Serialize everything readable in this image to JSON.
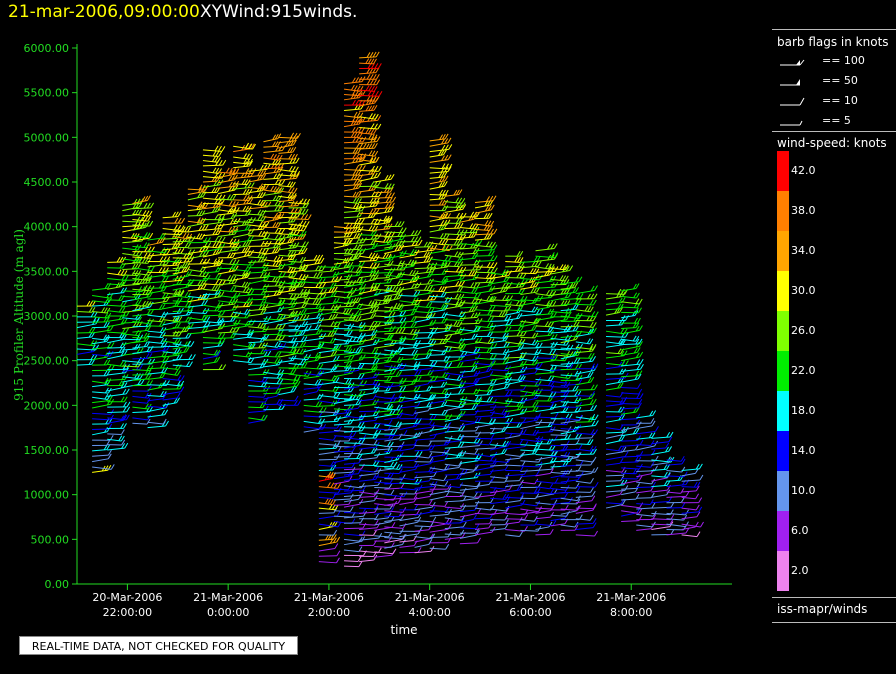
{
  "header": {
    "datetime": "21-mar-2006,09:00:00",
    "product": "XYWind:915winds."
  },
  "footer_note": "REAL-TIME DATA, NOT CHECKED FOR QUALITY",
  "legend": {
    "barb_title": "barb flags in knots",
    "barb_items": [
      {
        "label": "== 100",
        "knots": 100
      },
      {
        "label": "== 50",
        "knots": 50
      },
      {
        "label": "== 10",
        "knots": 10
      },
      {
        "label": "== 5",
        "knots": 5
      }
    ],
    "speed_title": "wind-speed: knots",
    "speed_scale": [
      {
        "label": "42.0",
        "color": "#ff0000"
      },
      {
        "label": "38.0",
        "color": "#ff7f00"
      },
      {
        "label": "34.0",
        "color": "#ffa500"
      },
      {
        "label": "30.0",
        "color": "#ffff00"
      },
      {
        "label": "26.0",
        "color": "#7fff00"
      },
      {
        "label": "22.0",
        "color": "#00ee00"
      },
      {
        "label": "18.0",
        "color": "#00ffff"
      },
      {
        "label": "14.0",
        "color": "#0000ff"
      },
      {
        "label": "10.0",
        "color": "#6495ed"
      },
      {
        "label": "6.0",
        "color": "#a020f0"
      },
      {
        "label": "2.0",
        "color": "#ee82ee"
      }
    ],
    "source": "iss-mapr/winds"
  },
  "colors": {
    "axis": "#22dd22",
    "text": "#ffffff",
    "background": "#000000",
    "title_date": "#ffff00"
  },
  "chart_data": {
    "type": "wind-barb time-height",
    "xlabel": "time",
    "ylabel": "915 Profiler Altitude (m agl)",
    "ylim": [
      0,
      6000
    ],
    "y_ticks": [
      "0.00",
      "500.00",
      "1000.00",
      "1500.00",
      "2000.00",
      "2500.00",
      "3000.00",
      "3500.00",
      "4000.00",
      "4500.00",
      "5000.00",
      "5500.00",
      "6000.00"
    ],
    "x_ticks": [
      {
        "date": "20-Mar-2006",
        "time": "22:00:00",
        "hours": 22
      },
      {
        "date": "21-Mar-2006",
        "time": "0:00:00",
        "hours": 24
      },
      {
        "date": "21-Mar-2006",
        "time": "2:00:00",
        "hours": 26
      },
      {
        "date": "21-Mar-2006",
        "time": "4:00:00",
        "hours": 28
      },
      {
        "date": "21-Mar-2006",
        "time": "6:00:00",
        "hours": 30
      },
      {
        "date": "21-Mar-2006",
        "time": "8:00:00",
        "hours": 32
      }
    ],
    "xlim_hours": [
      21,
      34
    ],
    "profiles": [
      {
        "hour": 21.0,
        "bottom": 2450,
        "top": 3150
      },
      {
        "hour": 21.3,
        "bottom": 1250,
        "top": 3300
      },
      {
        "hour": 21.6,
        "bottom": 1500,
        "top": 3600
      },
      {
        "hour": 21.9,
        "bottom": 2200,
        "top": 4250
      },
      {
        "hour": 22.1,
        "bottom": 1800,
        "top": 4300
      },
      {
        "hour": 22.4,
        "bottom": 1750,
        "top": 3900
      },
      {
        "hour": 22.7,
        "bottom": 2000,
        "top": 4150
      },
      {
        "hour": 22.9,
        "bottom": 2450,
        "top": 4000
      },
      {
        "hour": 23.2,
        "bottom": 2800,
        "top": 4450
      },
      {
        "hour": 23.5,
        "bottom": 2400,
        "top": 4900
      },
      {
        "hour": 23.8,
        "bottom": 2750,
        "top": 4650
      },
      {
        "hour": 24.1,
        "bottom": 2500,
        "top": 4950
      },
      {
        "hour": 24.4,
        "bottom": 1800,
        "top": 4650
      },
      {
        "hour": 24.7,
        "bottom": 1950,
        "top": 4950
      },
      {
        "hour": 25.0,
        "bottom": 2000,
        "top": 5000
      },
      {
        "hour": 25.2,
        "bottom": 2350,
        "top": 4300
      },
      {
        "hour": 25.5,
        "bottom": 1700,
        "top": 3650
      },
      {
        "hour": 25.8,
        "bottom": 250,
        "top": 3550
      },
      {
        "hour": 26.1,
        "bottom": 700,
        "top": 4050
      },
      {
        "hour": 26.3,
        "bottom": 200,
        "top": 5600
      },
      {
        "hour": 26.6,
        "bottom": 250,
        "top": 5900
      },
      {
        "hour": 26.9,
        "bottom": 300,
        "top": 4500
      },
      {
        "hour": 27.1,
        "bottom": 400,
        "top": 4000
      },
      {
        "hour": 27.4,
        "bottom": 350,
        "top": 3900
      },
      {
        "hour": 27.7,
        "bottom": 350,
        "top": 3800
      },
      {
        "hour": 28.0,
        "bottom": 400,
        "top": 5000
      },
      {
        "hour": 28.3,
        "bottom": 500,
        "top": 4350
      },
      {
        "hour": 28.6,
        "bottom": 450,
        "top": 4150
      },
      {
        "hour": 28.9,
        "bottom": 550,
        "top": 4300
      },
      {
        "hour": 29.2,
        "bottom": 600,
        "top": 3500
      },
      {
        "hour": 29.5,
        "bottom": 550,
        "top": 3700
      },
      {
        "hour": 29.8,
        "bottom": 600,
        "top": 3600
      },
      {
        "hour": 30.1,
        "bottom": 550,
        "top": 3750
      },
      {
        "hour": 30.4,
        "bottom": 650,
        "top": 3550
      },
      {
        "hour": 30.6,
        "bottom": 600,
        "top": 3400
      },
      {
        "hour": 30.9,
        "bottom": 550,
        "top": 3300
      },
      {
        "hour": 31.5,
        "bottom": 850,
        "top": 3250
      },
      {
        "hour": 31.8,
        "bottom": 700,
        "top": 3300
      },
      {
        "hour": 32.1,
        "bottom": 600,
        "top": 1900
      },
      {
        "hour": 32.4,
        "bottom": 550,
        "top": 1650
      },
      {
        "hour": 32.7,
        "bottom": 550,
        "top": 1400
      },
      {
        "hour": 33.0,
        "bottom": 550,
        "top": 1300
      }
    ]
  }
}
